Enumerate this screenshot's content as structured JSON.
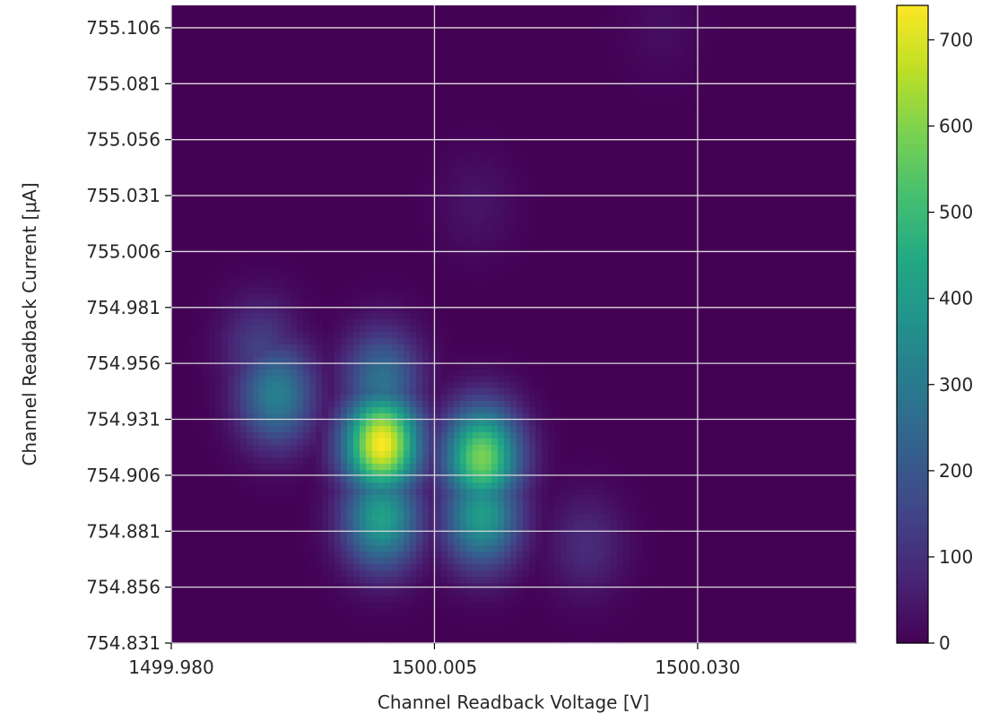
{
  "chart_data": {
    "type": "heatmap",
    "title": "",
    "xlabel": "Channel Readback Voltage [V]",
    "ylabel": "Channel Readback Current [μA]",
    "xlim": [
      1499.98,
      1500.045
    ],
    "ylim": [
      754.831,
      755.116
    ],
    "x_ticks": [
      1499.98,
      1500.005,
      1500.03
    ],
    "x_tick_labels": [
      "1499.980",
      "1500.005",
      "1500.030"
    ],
    "y_ticks": [
      754.831,
      754.856,
      754.881,
      754.906,
      754.931,
      754.956,
      754.981,
      755.006,
      755.031,
      755.056,
      755.081,
      755.106
    ],
    "y_tick_labels": [
      "754.831",
      "754.856",
      "754.881",
      "754.906",
      "754.931",
      "754.956",
      "754.981",
      "755.006",
      "755.031",
      "755.056",
      "755.081",
      "755.106"
    ],
    "grid": true,
    "colormap": "viridis",
    "colorbar": {
      "range": [
        0,
        740
      ],
      "ticks": [
        0,
        100,
        200,
        300,
        400,
        500,
        600,
        700
      ],
      "tick_labels": [
        "0",
        "100",
        "200",
        "300",
        "400",
        "500",
        "600",
        "700"
      ]
    },
    "density_peaks": [
      {
        "x": 1500.0,
        "y": 754.92,
        "value": 740
      },
      {
        "x": 1500.0095,
        "y": 754.914,
        "value": 590
      },
      {
        "x": 1500.0,
        "y": 754.887,
        "value": 420
      },
      {
        "x": 1500.0095,
        "y": 754.888,
        "value": 410
      },
      {
        "x": 1499.99,
        "y": 754.942,
        "value": 320
      },
      {
        "x": 1499.9885,
        "y": 754.962,
        "value": 140
      },
      {
        "x": 1500.0,
        "y": 754.948,
        "value": 280
      },
      {
        "x": 1500.0195,
        "y": 754.875,
        "value": 90
      },
      {
        "x": 1500.009,
        "y": 755.027,
        "value": 40
      },
      {
        "x": 1500.0265,
        "y": 755.106,
        "value": 25
      }
    ]
  }
}
